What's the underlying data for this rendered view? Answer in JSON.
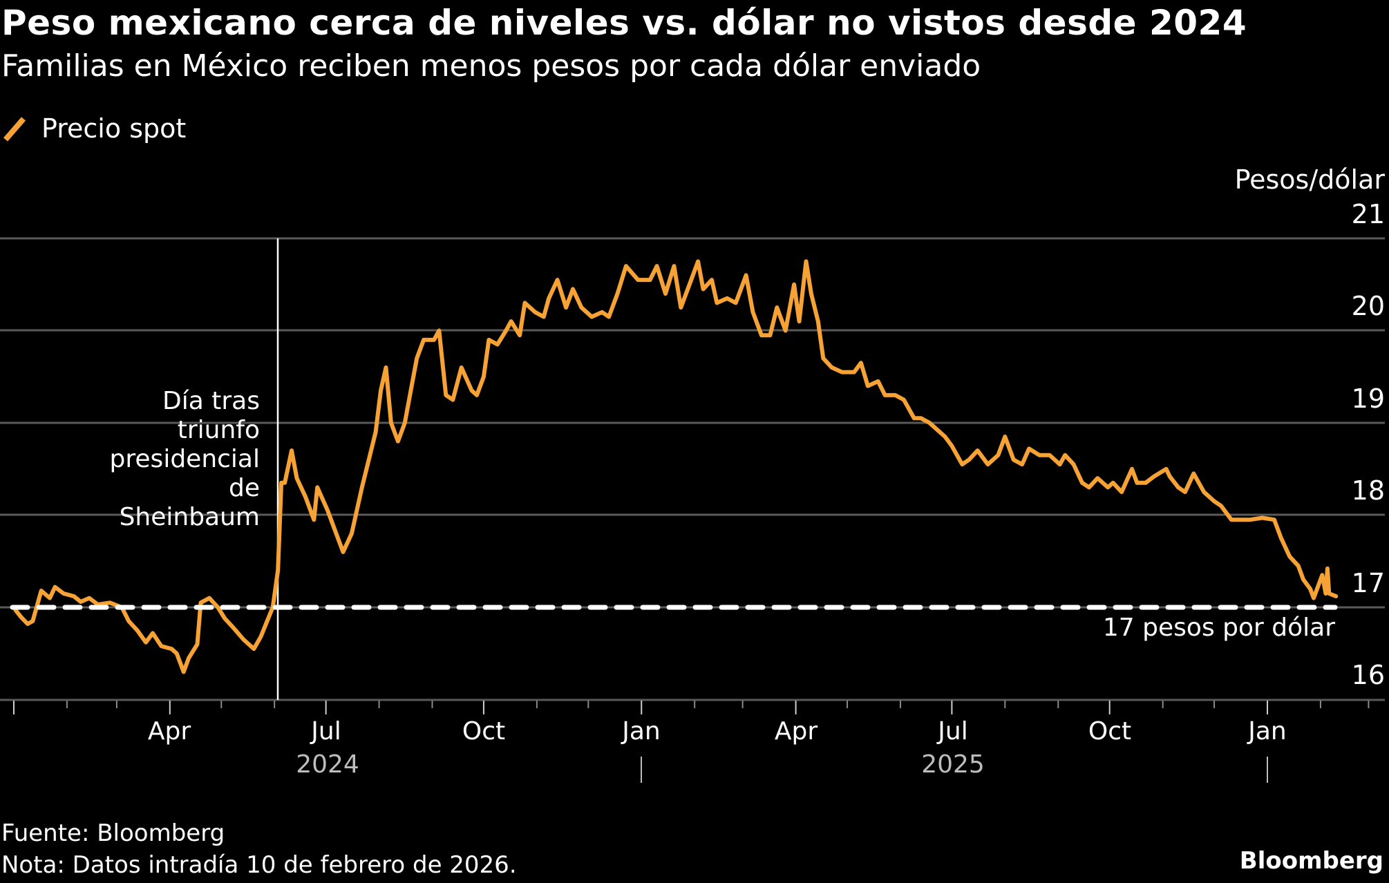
{
  "header": {
    "title": "Peso mexicano cerca de niveles vs. dólar no vistos desde 2024",
    "subtitle": "Familias en México reciben menos pesos por cada dólar enviado"
  },
  "legend": {
    "label": "Precio spot",
    "icon": "line-swatch-icon",
    "color": "#f7a234"
  },
  "axis": {
    "unit_label": "Pesos/dólar",
    "y_ticks": [
      "21",
      "20",
      "19",
      "18",
      "17",
      "16"
    ],
    "x_ticks": [
      "Apr",
      "Jul",
      "Oct",
      "Jan",
      "Apr",
      "Jul",
      "Oct",
      "Jan"
    ],
    "years": [
      "2024",
      "2025"
    ]
  },
  "annotation": {
    "event_lines": [
      "Día tras",
      "triunfo",
      "presidencial",
      "de",
      "Sheinbaum"
    ],
    "reference_label": "17 pesos por dólar"
  },
  "footer": {
    "source": "Fuente: Bloomberg",
    "note": "Nota: Datos intradía 10 de febrero de 2026.",
    "brand": "Bloomberg"
  },
  "colors": {
    "line": "#f7a234",
    "grid": "#5a5a5a",
    "background": "#000000",
    "text": "#ffffff",
    "year": "#bdbdbd"
  },
  "chart_data": {
    "type": "line",
    "title": "Peso mexicano cerca de niveles vs. dólar no vistos desde 2024",
    "subtitle": "Familias en México reciben menos pesos por cada dólar enviado",
    "xlabel": "",
    "ylabel": "Pesos/dólar",
    "ylim": [
      16,
      21
    ],
    "y_ticks": [
      16,
      17,
      18,
      19,
      20,
      21
    ],
    "x_ticks": [
      "Apr 2024",
      "Jul 2024",
      "Oct 2024",
      "Jan 2025",
      "Apr 2025",
      "Jul 2025",
      "Oct 2025",
      "Jan 2026"
    ],
    "grid": true,
    "legend_position": "top-left",
    "annotations": [
      {
        "type": "vline",
        "date": "2024-06-03",
        "text": "Día tras triunfo presidencial de Sheinbaum"
      },
      {
        "type": "hline",
        "value": 17,
        "style": "dashed",
        "text": "17 pesos por dólar"
      }
    ],
    "series": [
      {
        "name": "Precio spot",
        "color": "#f7a234",
        "points": [
          [
            "2024-01-02",
            16.97
          ],
          [
            "2024-01-05",
            16.9
          ],
          [
            "2024-01-09",
            16.82
          ],
          [
            "2024-01-12",
            16.85
          ],
          [
            "2024-01-17",
            17.18
          ],
          [
            "2024-01-22",
            17.1
          ],
          [
            "2024-01-25",
            17.22
          ],
          [
            "2024-01-30",
            17.15
          ],
          [
            "2024-02-05",
            17.12
          ],
          [
            "2024-02-09",
            17.06
          ],
          [
            "2024-02-14",
            17.1
          ],
          [
            "2024-02-19",
            17.03
          ],
          [
            "2024-02-26",
            17.05
          ],
          [
            "2024-03-04",
            17.0
          ],
          [
            "2024-03-08",
            16.85
          ],
          [
            "2024-03-13",
            16.75
          ],
          [
            "2024-03-18",
            16.62
          ],
          [
            "2024-03-22",
            16.72
          ],
          [
            "2024-03-27",
            16.58
          ],
          [
            "2024-04-02",
            16.55
          ],
          [
            "2024-04-05",
            16.5
          ],
          [
            "2024-04-09",
            16.3
          ],
          [
            "2024-04-12",
            16.45
          ],
          [
            "2024-04-17",
            16.6
          ],
          [
            "2024-04-19",
            17.05
          ],
          [
            "2024-04-24",
            17.1
          ],
          [
            "2024-04-29",
            17.0
          ],
          [
            "2024-05-03",
            16.88
          ],
          [
            "2024-05-08",
            16.78
          ],
          [
            "2024-05-14",
            16.65
          ],
          [
            "2024-05-20",
            16.55
          ],
          [
            "2024-05-24",
            16.68
          ],
          [
            "2024-05-31",
            17.0
          ],
          [
            "2024-06-03",
            17.4
          ],
          [
            "2024-06-05",
            18.35
          ],
          [
            "2024-06-07",
            18.35
          ],
          [
            "2024-06-11",
            18.7
          ],
          [
            "2024-06-14",
            18.4
          ],
          [
            "2024-06-19",
            18.2
          ],
          [
            "2024-06-24",
            17.95
          ],
          [
            "2024-06-26",
            18.3
          ],
          [
            "2024-07-02",
            18.05
          ],
          [
            "2024-07-08",
            17.75
          ],
          [
            "2024-07-11",
            17.6
          ],
          [
            "2024-07-16",
            17.8
          ],
          [
            "2024-07-22",
            18.3
          ],
          [
            "2024-07-26",
            18.6
          ],
          [
            "2024-07-30",
            18.9
          ],
          [
            "2024-08-02",
            19.35
          ],
          [
            "2024-08-05",
            19.6
          ],
          [
            "2024-08-08",
            19.0
          ],
          [
            "2024-08-12",
            18.8
          ],
          [
            "2024-08-16",
            19.0
          ],
          [
            "2024-08-20",
            19.4
          ],
          [
            "2024-08-23",
            19.7
          ],
          [
            "2024-08-27",
            19.9
          ],
          [
            "2024-09-02",
            19.9
          ],
          [
            "2024-09-05",
            20.0
          ],
          [
            "2024-09-09",
            19.3
          ],
          [
            "2024-09-13",
            19.25
          ],
          [
            "2024-09-18",
            19.6
          ],
          [
            "2024-09-24",
            19.35
          ],
          [
            "2024-09-27",
            19.3
          ],
          [
            "2024-10-01",
            19.5
          ],
          [
            "2024-10-04",
            19.9
          ],
          [
            "2024-10-09",
            19.85
          ],
          [
            "2024-10-14",
            20.0
          ],
          [
            "2024-10-17",
            20.1
          ],
          [
            "2024-10-22",
            19.95
          ],
          [
            "2024-10-25",
            20.3
          ],
          [
            "2024-10-31",
            20.2
          ],
          [
            "2024-11-05",
            20.15
          ],
          [
            "2024-11-08",
            20.35
          ],
          [
            "2024-11-13",
            20.55
          ],
          [
            "2024-11-18",
            20.25
          ],
          [
            "2024-11-22",
            20.45
          ],
          [
            "2024-11-27",
            20.25
          ],
          [
            "2024-12-03",
            20.15
          ],
          [
            "2024-12-09",
            20.2
          ],
          [
            "2024-12-13",
            20.15
          ],
          [
            "2024-12-18",
            20.4
          ],
          [
            "2024-12-23",
            20.7
          ],
          [
            "2024-12-30",
            20.55
          ],
          [
            "2025-01-06",
            20.55
          ],
          [
            "2025-01-10",
            20.7
          ],
          [
            "2025-01-15",
            20.4
          ],
          [
            "2025-01-20",
            20.7
          ],
          [
            "2025-01-24",
            20.25
          ],
          [
            "2025-01-29",
            20.5
          ],
          [
            "2025-02-03",
            20.75
          ],
          [
            "2025-02-06",
            20.45
          ],
          [
            "2025-02-11",
            20.55
          ],
          [
            "2025-02-14",
            20.3
          ],
          [
            "2025-02-20",
            20.35
          ],
          [
            "2025-02-25",
            20.3
          ],
          [
            "2025-03-03",
            20.6
          ],
          [
            "2025-03-07",
            20.2
          ],
          [
            "2025-03-12",
            19.95
          ],
          [
            "2025-03-17",
            19.95
          ],
          [
            "2025-03-21",
            20.25
          ],
          [
            "2025-03-26",
            20.0
          ],
          [
            "2025-03-31",
            20.5
          ],
          [
            "2025-04-03",
            20.1
          ],
          [
            "2025-04-07",
            20.75
          ],
          [
            "2025-04-10",
            20.4
          ],
          [
            "2025-04-14",
            20.1
          ],
          [
            "2025-04-17",
            19.7
          ],
          [
            "2025-04-22",
            19.6
          ],
          [
            "2025-04-28",
            19.55
          ],
          [
            "2025-05-05",
            19.55
          ],
          [
            "2025-05-09",
            19.65
          ],
          [
            "2025-05-13",
            19.4
          ],
          [
            "2025-05-19",
            19.45
          ],
          [
            "2025-05-23",
            19.3
          ],
          [
            "2025-05-29",
            19.3
          ],
          [
            "2025-06-03",
            19.25
          ],
          [
            "2025-06-09",
            19.05
          ],
          [
            "2025-06-13",
            19.05
          ],
          [
            "2025-06-18",
            19.0
          ],
          [
            "2025-06-24",
            18.9
          ],
          [
            "2025-06-27",
            18.85
          ],
          [
            "2025-07-01",
            18.75
          ],
          [
            "2025-07-07",
            18.55
          ],
          [
            "2025-07-11",
            18.6
          ],
          [
            "2025-07-16",
            18.7
          ],
          [
            "2025-07-22",
            18.55
          ],
          [
            "2025-07-28",
            18.65
          ],
          [
            "2025-08-01",
            18.85
          ],
          [
            "2025-08-06",
            18.6
          ],
          [
            "2025-08-11",
            18.55
          ],
          [
            "2025-08-15",
            18.72
          ],
          [
            "2025-08-21",
            18.65
          ],
          [
            "2025-08-27",
            18.65
          ],
          [
            "2025-09-02",
            18.55
          ],
          [
            "2025-09-05",
            18.65
          ],
          [
            "2025-09-10",
            18.55
          ],
          [
            "2025-09-15",
            18.35
          ],
          [
            "2025-09-19",
            18.3
          ],
          [
            "2025-09-24",
            18.4
          ],
          [
            "2025-09-30",
            18.3
          ],
          [
            "2025-10-03",
            18.35
          ],
          [
            "2025-10-08",
            18.25
          ],
          [
            "2025-10-14",
            18.5
          ],
          [
            "2025-10-17",
            18.35
          ],
          [
            "2025-10-22",
            18.35
          ],
          [
            "2025-10-27",
            18.42
          ],
          [
            "2025-11-03",
            18.5
          ],
          [
            "2025-11-05",
            18.42
          ],
          [
            "2025-11-10",
            18.3
          ],
          [
            "2025-11-14",
            18.25
          ],
          [
            "2025-11-19",
            18.45
          ],
          [
            "2025-11-25",
            18.25
          ],
          [
            "2025-12-01",
            18.15
          ],
          [
            "2025-12-05",
            18.1
          ],
          [
            "2025-12-11",
            17.95
          ],
          [
            "2025-12-16",
            17.95
          ],
          [
            "2025-12-22",
            17.95
          ],
          [
            "2025-12-29",
            17.97
          ],
          [
            "2026-01-05",
            17.95
          ],
          [
            "2026-01-09",
            17.75
          ],
          [
            "2026-01-14",
            17.55
          ],
          [
            "2026-01-19",
            17.45
          ],
          [
            "2026-01-22",
            17.3
          ],
          [
            "2026-01-26",
            17.2
          ],
          [
            "2026-01-28",
            17.1
          ],
          [
            "2026-02-02",
            17.35
          ],
          [
            "2026-02-04",
            17.15
          ],
          [
            "2026-02-05",
            17.42
          ],
          [
            "2026-02-06",
            17.15
          ],
          [
            "2026-02-10",
            17.12
          ]
        ]
      }
    ]
  }
}
